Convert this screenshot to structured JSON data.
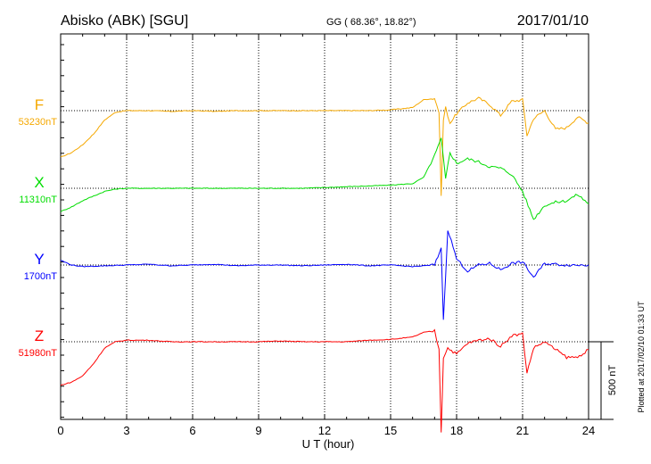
{
  "header": {
    "station": "Abisko (ABK)  [SGU]",
    "coords": "GG ( 68.36°,  18.82°)",
    "date": "2017/01/10"
  },
  "footer_note": "Plotted at 2017/02/10 01:33 UT",
  "scale_label": "500 nT",
  "colors": {
    "F": "#f5a800",
    "X": "#00dd00",
    "Y": "#0000ff",
    "Z": "#ff0000"
  },
  "chart_data": {
    "type": "line",
    "xlabel": "U T (hour)",
    "xlim": [
      0,
      24
    ],
    "x_ticks": [
      "0",
      "3",
      "6",
      "9",
      "12",
      "15",
      "18",
      "21",
      "24"
    ],
    "grid": "dotted",
    "scale_bar_nT": 500,
    "series": [
      {
        "name": "F",
        "baseline_label": "53230nT",
        "baseline_nT": 53230,
        "x": [
          0,
          0.5,
          1,
          1.5,
          2,
          2.5,
          3,
          4,
          5,
          6,
          7,
          8,
          9,
          10,
          11,
          12,
          13,
          14,
          15,
          16,
          16.5,
          17,
          17.2,
          17.3,
          17.4,
          17.5,
          17.7,
          18,
          18.5,
          19,
          19.5,
          20,
          20.5,
          21,
          21.2,
          21.5,
          22,
          22.5,
          23,
          23.5,
          24
        ],
        "delta_nT": [
          -300,
          -270,
          -220,
          -150,
          -60,
          -10,
          0,
          0,
          -5,
          0,
          -5,
          0,
          0,
          0,
          0,
          0,
          0,
          0,
          5,
          20,
          70,
          80,
          -10,
          -540,
          -60,
          20,
          -80,
          -20,
          50,
          80,
          40,
          -30,
          60,
          70,
          -160,
          -50,
          0,
          -120,
          -110,
          -40,
          -80
        ]
      },
      {
        "name": "X",
        "baseline_label": "11310nT",
        "baseline_nT": 11310,
        "x": [
          0,
          0.5,
          1,
          1.5,
          2,
          2.5,
          3,
          4,
          5,
          6,
          7,
          8,
          9,
          10,
          11,
          12,
          13,
          14,
          15,
          16,
          16.5,
          17,
          17.3,
          17.5,
          17.7,
          18,
          18.5,
          19,
          19.5,
          20,
          20.5,
          21,
          21.5,
          22,
          22.5,
          23,
          23.5,
          24
        ],
        "delta_nT": [
          -150,
          -120,
          -80,
          -50,
          -20,
          -5,
          0,
          0,
          0,
          0,
          0,
          0,
          0,
          0,
          0,
          5,
          10,
          15,
          20,
          30,
          70,
          210,
          320,
          60,
          230,
          160,
          190,
          170,
          140,
          130,
          90,
          -20,
          -200,
          -110,
          -90,
          -80,
          -40,
          -100
        ]
      },
      {
        "name": "Y",
        "baseline_label": "1700nT",
        "baseline_nT": 1700,
        "x": [
          0,
          0.5,
          1,
          2,
          3,
          4,
          5,
          6,
          7,
          8,
          9,
          10,
          11,
          12,
          13,
          14,
          15,
          16,
          17,
          17.3,
          17.4,
          17.6,
          18,
          18.5,
          19,
          19.5,
          20,
          20.5,
          21,
          21.5,
          22,
          23,
          24
        ],
        "delta_nT": [
          30,
          0,
          -10,
          -5,
          0,
          5,
          -5,
          0,
          5,
          -5,
          0,
          0,
          -5,
          0,
          5,
          -5,
          0,
          -10,
          0,
          110,
          -360,
          230,
          40,
          -40,
          0,
          10,
          -30,
          10,
          20,
          -80,
          10,
          0,
          0
        ]
      },
      {
        "name": "Z",
        "baseline_label": "51980nT",
        "baseline_nT": 51980,
        "x": [
          0,
          0.5,
          1,
          1.5,
          2,
          2.5,
          3,
          4,
          5,
          6,
          7,
          8,
          9,
          10,
          11,
          12,
          13,
          14,
          15,
          16,
          16.5,
          17,
          17.2,
          17.3,
          17.4,
          17.6,
          18,
          18.5,
          19,
          19.5,
          20,
          20.5,
          21,
          21.2,
          21.5,
          22,
          22.5,
          23,
          23.5,
          24
        ],
        "delta_nT": [
          -280,
          -260,
          -220,
          -140,
          -40,
          0,
          10,
          10,
          0,
          0,
          0,
          0,
          0,
          5,
          0,
          0,
          0,
          10,
          15,
          30,
          60,
          70,
          -50,
          -580,
          -100,
          -40,
          -80,
          -10,
          10,
          20,
          -30,
          40,
          50,
          -200,
          -40,
          0,
          -50,
          -100,
          -100,
          -50
        ]
      }
    ]
  }
}
